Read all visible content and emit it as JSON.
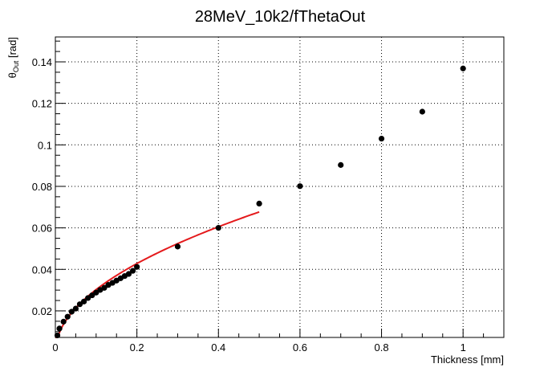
{
  "chart_data": {
    "type": "scatter",
    "title": "28MeV_10k2/fThetaOut",
    "xlabel": "Thickness [mm]",
    "ylabel_main": "θ",
    "ylabel_sub": "Out",
    "ylabel_unit": " [rad]",
    "xlim": [
      0,
      1.1
    ],
    "ylim": [
      0.0072,
      0.152
    ],
    "xticks": [
      0,
      0.2,
      0.4,
      0.6,
      0.8,
      1
    ],
    "yticks": [
      0.02,
      0.04,
      0.06,
      0.08,
      0.1,
      0.12,
      0.14
    ],
    "xtick_labels": [
      "0",
      "0.2",
      "0.4",
      "0.6",
      "0.8",
      "1"
    ],
    "ytick_labels": [
      "0.02",
      "0.04",
      "0.06",
      "0.08",
      "0.1",
      "0.12",
      "0.14"
    ],
    "grid": true,
    "legend": "none",
    "series": [
      {
        "marker": "circle",
        "color": "#000000",
        "x": [
          0.005,
          0.01,
          0.02,
          0.03,
          0.04,
          0.05,
          0.06,
          0.07,
          0.08,
          0.09,
          0.1,
          0.11,
          0.12,
          0.13,
          0.14,
          0.15,
          0.16,
          0.17,
          0.18,
          0.19,
          0.2,
          0.3,
          0.4,
          0.5,
          0.6,
          0.7,
          0.8,
          0.9,
          1.0
        ],
        "y": [
          0.0082,
          0.0115,
          0.0148,
          0.0172,
          0.0196,
          0.0211,
          0.0232,
          0.0245,
          0.0262,
          0.0275,
          0.0288,
          0.0301,
          0.0311,
          0.0325,
          0.0335,
          0.0346,
          0.0357,
          0.0368,
          0.0378,
          0.0393,
          0.0412,
          0.051,
          0.06,
          0.0717,
          0.0801,
          0.0903,
          0.103,
          0.116,
          0.1368
        ]
      }
    ],
    "fit": {
      "color": "#e41a1c",
      "coefficient": 0.0957,
      "exponent": 0.5,
      "x_range": [
        0.0,
        0.5
      ]
    }
  }
}
